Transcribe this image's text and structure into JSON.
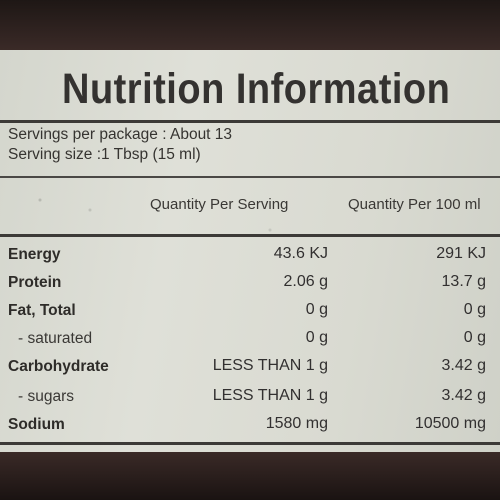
{
  "title": "Nutrition Information",
  "servings_per_package": "Servings per package  : About 13",
  "serving_size": "Serving size :1 Tbsp (15 ml)",
  "columns": {
    "per_serving": "Quantity Per Serving",
    "per_100ml": "Quantity Per 100 ml"
  },
  "rows": [
    {
      "label": "Energy",
      "per_serving": "43.6 KJ",
      "per_100ml": "291 KJ"
    },
    {
      "label": "Protein",
      "per_serving": "2.06 g",
      "per_100ml": "13.7 g"
    },
    {
      "label": "Fat, Total",
      "per_serving": "0 g",
      "per_100ml": "0 g"
    },
    {
      "label": "- saturated",
      "per_serving": "0 g",
      "per_100ml": "0 g"
    },
    {
      "label": "Carbohydrate",
      "per_serving": "LESS THAN 1 g",
      "per_100ml": "3.42 g"
    },
    {
      "label": "- sugars",
      "per_serving": "LESS THAN 1 g",
      "per_100ml": "3.42 g"
    },
    {
      "label": "Sodium",
      "per_serving": "1580 mg",
      "per_100ml": "10500 mg"
    }
  ],
  "colors": {
    "label_background": "#dcddd5",
    "text": "#2f2e2c",
    "bottle": "#2b1f1c"
  }
}
